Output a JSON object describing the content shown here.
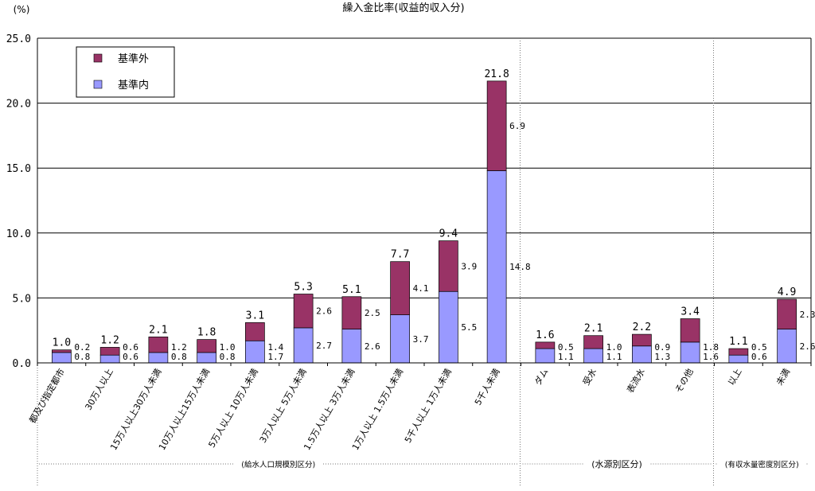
{
  "chart_data": {
    "type": "bar",
    "stacked": true,
    "title": "繰入金比率(収益的収入分)",
    "yunit": "(%)",
    "ylim": [
      0,
      25
    ],
    "yticks": [
      "0.0",
      "5.0",
      "10.0",
      "15.0",
      "20.0",
      "25.0"
    ],
    "grid": true,
    "legend_position": "top-left",
    "colors": {
      "inside": "#9999ff",
      "outside": "#993366"
    },
    "series": [
      {
        "key": "outside",
        "name": "基準外",
        "values": [
          0.2,
          0.6,
          1.2,
          1.0,
          1.4,
          2.6,
          2.5,
          4.1,
          3.9,
          6.9,
          0.5,
          1.0,
          0.9,
          1.8,
          0.5,
          2.3
        ],
        "labels": [
          "0.2",
          "0.6",
          "1.2",
          "1.0",
          "1.4",
          "2.6",
          "2.5",
          "4.1",
          "3.9",
          "6.9",
          "0.5",
          "1.0",
          "0.9",
          "1.8",
          "0.5",
          "2.3"
        ]
      },
      {
        "key": "inside",
        "name": "基準内",
        "values": [
          0.8,
          0.6,
          0.8,
          0.8,
          1.7,
          2.7,
          2.6,
          3.7,
          5.5,
          14.8,
          1.1,
          1.1,
          1.3,
          1.6,
          0.6,
          2.6
        ],
        "labels": [
          "0.8",
          "0.6",
          "0.8",
          "0.8",
          "1.7",
          "2.7",
          "2.6",
          "3.7",
          "5.5",
          "14.8",
          "1.1",
          "1.1",
          "1.3",
          "1.6",
          "0.6",
          "2.6"
        ]
      }
    ],
    "categories": [
      "都及び指定都市",
      "30万人以上",
      "15万人以上30万人未満",
      "10万人以上15万人未満",
      "5万人以上 10万人未満",
      "3万人以上 5万人未満",
      "1.5万人以上 3万人未満",
      "1万人以上 1.5万人未満",
      "5千人以上 1万人未満",
      "5千人未満",
      "ダム",
      "受水",
      "表流水",
      "その他",
      "以上",
      "未満"
    ],
    "totals": [
      1.0,
      1.2,
      2.1,
      1.8,
      3.1,
      5.3,
      5.1,
      7.7,
      9.4,
      21.8,
      1.6,
      2.1,
      2.2,
      3.4,
      1.1,
      4.9
    ],
    "total_labels": [
      "1.0",
      "1.2",
      "2.1",
      "1.8",
      "3.1",
      "5.3",
      "5.1",
      "7.7",
      "9.4",
      "21.8",
      "1.6",
      "2.1",
      "2.2",
      "3.4",
      "1.1",
      "4.9"
    ],
    "groups": [
      {
        "label": "(給水人口規模別区分)",
        "from": 0,
        "to": 9
      },
      {
        "label": "(水源別区分)",
        "from": 10,
        "to": 13
      },
      {
        "label": "(有収水量密度別区分)",
        "from": 14,
        "to": 15
      }
    ]
  }
}
